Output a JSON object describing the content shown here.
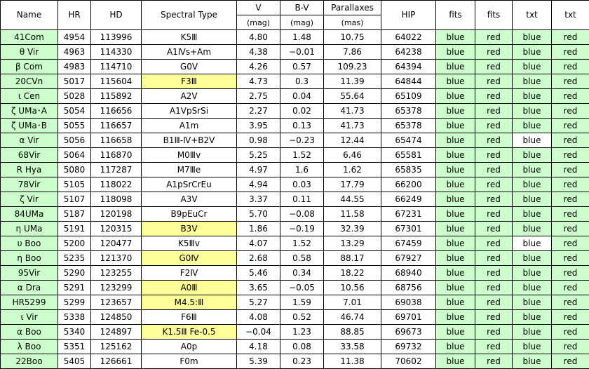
{
  "headers": {
    "name": "Name",
    "hr": "HR",
    "hd": "HD",
    "spectral_type": "Spectral Type",
    "v": "V",
    "v_unit": "(mag)",
    "bv": "B-V",
    "bv_unit": "(mag)",
    "parallaxes": "Parallaxes",
    "parallaxes_unit": "(mas)",
    "hip": "HIP",
    "fits_blue": "fits",
    "fits_red": "fits",
    "txt_blue": "txt",
    "txt_red": "txt"
  },
  "colors": {
    "link_cell": "#ccffcc",
    "highlight_cell": "#ffff99",
    "plain_cell": "#ffffff"
  },
  "rows": [
    {
      "name": "41Com",
      "hr": "4954",
      "hd": "113996",
      "sp": "K5Ⅲ",
      "v": "4.80",
      "bv": "1.48",
      "plx": "10.75",
      "hip": "64022",
      "f1": "blue",
      "f2": "red",
      "t1": "blue",
      "t2": "red",
      "sp_hl": false,
      "t1_white": false
    },
    {
      "name": "θ Vir",
      "hr": "4963",
      "hd": "114330",
      "sp": "A1Ⅳs+Am",
      "v": "4.38",
      "bv": "−0.01",
      "plx": "7.86",
      "hip": "64238",
      "f1": "blue",
      "f2": "red",
      "t1": "blue",
      "t2": "red",
      "sp_hl": false,
      "t1_white": false
    },
    {
      "name": "β Com",
      "hr": "4983",
      "hd": "114710",
      "sp": "G0Ⅴ",
      "v": "4.26",
      "bv": "0.57",
      "plx": "109.23",
      "hip": "64394",
      "f1": "blue",
      "f2": "red",
      "t1": "blue",
      "t2": "red",
      "sp_hl": false,
      "t1_white": false
    },
    {
      "name": "20CVn",
      "hr": "5017",
      "hd": "115604",
      "sp": "F3Ⅲ",
      "v": "4.73",
      "bv": "0.3",
      "plx": "11.39",
      "hip": "64844",
      "f1": "blue",
      "f2": "red",
      "t1": "blue",
      "t2": "red",
      "sp_hl": true,
      "t1_white": false
    },
    {
      "name": "ι Cen",
      "hr": "5028",
      "hd": "115892",
      "sp": "A2Ⅴ",
      "v": "2.75",
      "bv": "0.04",
      "plx": "55.64",
      "hip": "65109",
      "f1": "blue",
      "f2": "red",
      "t1": "blue",
      "t2": "red",
      "sp_hl": false,
      "t1_white": false
    },
    {
      "name": "ζ UMa･A",
      "hr": "5054",
      "hd": "116656",
      "sp": "A1ⅤpSrSi",
      "v": "2.27",
      "bv": "0.02",
      "plx": "41.73",
      "hip": "65378",
      "f1": "blue",
      "f2": "red",
      "t1": "blue",
      "t2": "red",
      "sp_hl": false,
      "t1_white": false
    },
    {
      "name": "ζ UMa･B",
      "hr": "5055",
      "hd": "116657",
      "sp": "A1m",
      "v": "3.95",
      "bv": "0.13",
      "plx": "41.73",
      "hip": "65378",
      "f1": "blue",
      "f2": "red",
      "t1": "blue",
      "t2": "red",
      "sp_hl": false,
      "t1_white": false
    },
    {
      "name": "α Vir",
      "hr": "5056",
      "hd": "116658",
      "sp": "B1Ⅲ-Ⅳ+B2Ⅴ",
      "v": "0.98",
      "bv": "−0.23",
      "plx": "12.44",
      "hip": "65474",
      "f1": "blue",
      "f2": "red",
      "t1": "blue",
      "t2": "red",
      "sp_hl": false,
      "t1_white": true
    },
    {
      "name": "68Vir",
      "hr": "5064",
      "hd": "116870",
      "sp": "M0Ⅲv",
      "v": "5.25",
      "bv": "1.52",
      "plx": "6.46",
      "hip": "65581",
      "f1": "blue",
      "f2": "red",
      "t1": "blue",
      "t2": "red",
      "sp_hl": false,
      "t1_white": false
    },
    {
      "name": "R Hya",
      "hr": "5080",
      "hd": "117287",
      "sp": "M7Ⅲe",
      "v": "4.97",
      "bv": "1.6",
      "plx": "1.62",
      "hip": "65835",
      "f1": "blue",
      "f2": "red",
      "t1": "blue",
      "t2": "red",
      "sp_hl": false,
      "t1_white": false
    },
    {
      "name": "78Vir",
      "hr": "5105",
      "hd": "118022",
      "sp": "A1pSrCrEu",
      "v": "4.94",
      "bv": "0.03",
      "plx": "17.79",
      "hip": "66200",
      "f1": "blue",
      "f2": "red",
      "t1": "blue",
      "t2": "red",
      "sp_hl": false,
      "t1_white": false
    },
    {
      "name": "ζ Vir",
      "hr": "5107",
      "hd": "118098",
      "sp": "A3Ⅴ",
      "v": "3.37",
      "bv": "0.11",
      "plx": "44.55",
      "hip": "66249",
      "f1": "blue",
      "f2": "red",
      "t1": "blue",
      "t2": "red",
      "sp_hl": false,
      "t1_white": false
    },
    {
      "name": "84UMa",
      "hr": "5187",
      "hd": "120198",
      "sp": "B9pEuCr",
      "v": "5.70",
      "bv": "−0.08",
      "plx": "11.58",
      "hip": "67231",
      "f1": "blue",
      "f2": "red",
      "t1": "blue",
      "t2": "red",
      "sp_hl": false,
      "t1_white": false
    },
    {
      "name": "η UMa",
      "hr": "5191",
      "hd": "120315",
      "sp": "B3Ⅴ",
      "v": "1.86",
      "bv": "−0.19",
      "plx": "32.39",
      "hip": "67301",
      "f1": "blue",
      "f2": "red",
      "t1": "blue",
      "t2": "red",
      "sp_hl": true,
      "t1_white": false
    },
    {
      "name": "υ Boo",
      "hr": "5200",
      "hd": "120477",
      "sp": "K5Ⅲv",
      "v": "4.07",
      "bv": "1.52",
      "plx": "13.29",
      "hip": "67459",
      "f1": "blue",
      "f2": "red",
      "t1": "blue",
      "t2": "red",
      "sp_hl": false,
      "t1_white": true
    },
    {
      "name": "η Boo",
      "hr": "5235",
      "hd": "121370",
      "sp": "G0Ⅳ",
      "v": "2.68",
      "bv": "0.58",
      "plx": "88.17",
      "hip": "67927",
      "f1": "blue",
      "f2": "red",
      "t1": "blue",
      "t2": "red",
      "sp_hl": true,
      "t1_white": false
    },
    {
      "name": "95Vir",
      "hr": "5290",
      "hd": "123255",
      "sp": "F2Ⅳ",
      "v": "5.46",
      "bv": "0.34",
      "plx": "18.22",
      "hip": "68940",
      "f1": "blue",
      "f2": "red",
      "t1": "blue",
      "t2": "red",
      "sp_hl": false,
      "t1_white": false
    },
    {
      "name": "α Dra",
      "hr": "5291",
      "hd": "123299",
      "sp": "A0Ⅲ",
      "v": "3.65",
      "bv": "−0.05",
      "plx": "10.56",
      "hip": "68756",
      "f1": "blue",
      "f2": "red",
      "t1": "blue",
      "t2": "red",
      "sp_hl": true,
      "t1_white": false
    },
    {
      "name": "HR5299",
      "hr": "5299",
      "hd": "123657",
      "sp": "M4.5:Ⅲ",
      "v": "5.27",
      "bv": "1.59",
      "plx": "7.01",
      "hip": "69038",
      "f1": "blue",
      "f2": "red",
      "t1": "blue",
      "t2": "red",
      "sp_hl": true,
      "t1_white": false
    },
    {
      "name": "ι Vir",
      "hr": "5338",
      "hd": "124850",
      "sp": "F6Ⅲ",
      "v": "4.08",
      "bv": "0.52",
      "plx": "46.74",
      "hip": "69701",
      "f1": "blue",
      "f2": "red",
      "t1": "blue",
      "t2": "red",
      "sp_hl": false,
      "t1_white": false
    },
    {
      "name": "α Boo",
      "hr": "5340",
      "hd": "124897",
      "sp": "K1.5Ⅲ Fe-0.5",
      "v": "−0.04",
      "bv": "1.23",
      "plx": "88.85",
      "hip": "69673",
      "f1": "blue",
      "f2": "red",
      "t1": "blue",
      "t2": "red",
      "sp_hl": true,
      "t1_white": false
    },
    {
      "name": "λ Boo",
      "hr": "5351",
      "hd": "125162",
      "sp": "A0p",
      "v": "4.18",
      "bv": "0.08",
      "plx": "33.58",
      "hip": "69732",
      "f1": "blue",
      "f2": "red",
      "t1": "blue",
      "t2": "red",
      "sp_hl": false,
      "t1_white": false
    },
    {
      "name": "22Boo",
      "hr": "5405",
      "hd": "126661",
      "sp": "F0m",
      "v": "5.39",
      "bv": "0.23",
      "plx": "11.38",
      "hip": "70602",
      "f1": "blue",
      "f2": "red",
      "t1": "blue",
      "t2": "red",
      "sp_hl": false,
      "t1_white": false
    }
  ]
}
